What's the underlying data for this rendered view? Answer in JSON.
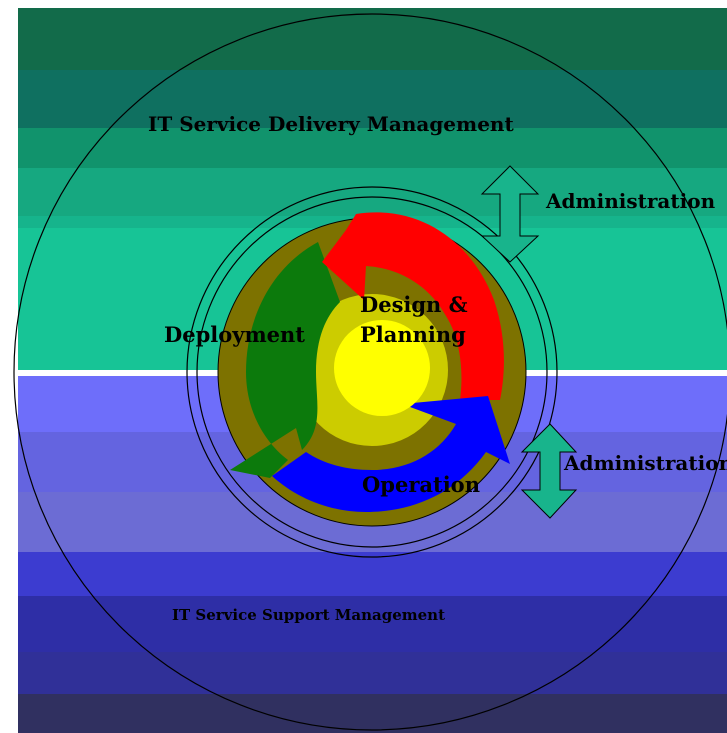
{
  "labels": {
    "delivery": "IT Service Delivery Management",
    "support": "IT Service Support Management",
    "admin_top": "Administration",
    "admin_bottom": "Administration",
    "deployment": "Deployment",
    "design_line1": "Design &",
    "design_line2": "Planning",
    "operation": "Operation"
  },
  "colors": {
    "top_bands": [
      "#126b4a",
      "#0f7060",
      "#11936c",
      "#16a880",
      "#16b48c",
      "#17c496",
      "#19c9a0"
    ],
    "bottom_bands": [
      "#6e6efa",
      "#6464e0",
      "#6c6cd4",
      "#3c3cd0",
      "#2e2ea6",
      "#303098",
      "#303060"
    ],
    "ring_outer": "#7d7200",
    "arrow_design": "#ff0000",
    "arrow_operation": "#0000ff",
    "arrow_deployment": "#0c7a0c",
    "inner_ring": "#cccc00",
    "core": "#ffff00",
    "admin_arrow": "#18b48c"
  }
}
